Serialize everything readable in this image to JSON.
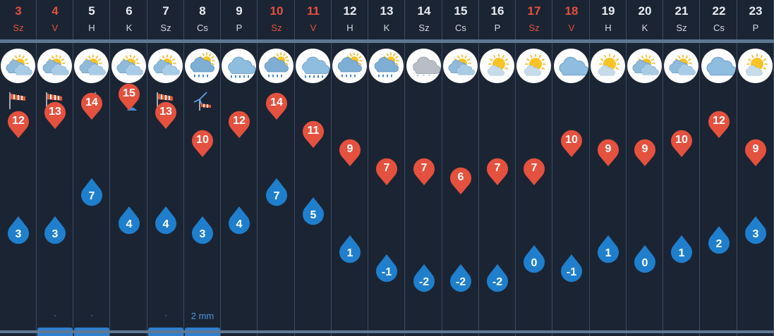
{
  "colors": {
    "background": "#1b2433",
    "separator": "#3a4b63",
    "hot_pin": "#e4513e",
    "cold_pin": "#1f7fcc",
    "weekend_text": "#e4513e",
    "precip_text": "#4c95d8",
    "precip_bar": "#2f7fcf"
  },
  "days": [
    {
      "day": "3",
      "wd": "Sz",
      "weekend": true,
      "icon": "partly-cloudy-icon",
      "wind": "windsock-icon",
      "high": "12",
      "low": "3",
      "precip": "",
      "bar": false
    },
    {
      "day": "4",
      "wd": "V",
      "weekend": true,
      "icon": "partly-cloudy-icon",
      "wind": "windsock-icon",
      "high": "13",
      "low": "3",
      "precip": ".",
      "bar": true
    },
    {
      "day": "5",
      "wd": "H",
      "weekend": false,
      "icon": "partly-cloudy-icon",
      "wind": "wind-turbine-icon",
      "high": "14",
      "low": "7",
      "precip": ".",
      "bar": true
    },
    {
      "day": "6",
      "wd": "K",
      "weekend": false,
      "icon": "partly-cloudy-icon",
      "wind": "strong-wind-warning-icon",
      "high": "15",
      "low": "4",
      "precip": "",
      "bar": false
    },
    {
      "day": "7",
      "wd": "Sz",
      "weekend": false,
      "icon": "partly-cloudy-icon",
      "wind": "windsock-icon",
      "high": "13",
      "low": "4",
      "precip": ".",
      "bar": true
    },
    {
      "day": "8",
      "wd": "Cs",
      "weekend": false,
      "icon": "sun-cloud-rain-icon",
      "wind": "wind-turbine-icon",
      "high": "10",
      "low": "3",
      "precip": "2 mm",
      "bar": true
    },
    {
      "day": "9",
      "wd": "P",
      "weekend": false,
      "icon": "rain-cloud-icon",
      "wind": "",
      "high": "12",
      "low": "4",
      "precip": "",
      "bar": false
    },
    {
      "day": "10",
      "wd": "Sz",
      "weekend": true,
      "icon": "sun-cloud-rain-icon",
      "wind": "",
      "high": "14",
      "low": "7",
      "precip": "",
      "bar": false
    },
    {
      "day": "11",
      "wd": "V",
      "weekend": true,
      "icon": "rain-cloud-icon",
      "wind": "",
      "high": "11",
      "low": "5",
      "precip": "",
      "bar": false
    },
    {
      "day": "12",
      "wd": "H",
      "weekend": false,
      "icon": "sun-cloud-rain-icon",
      "wind": "",
      "high": "9",
      "low": "1",
      "precip": "",
      "bar": false
    },
    {
      "day": "13",
      "wd": "K",
      "weekend": false,
      "icon": "sun-cloud-rain-icon",
      "wind": "",
      "high": "7",
      "low": "-1",
      "precip": "",
      "bar": false
    },
    {
      "day": "14",
      "wd": "Sz",
      "weekend": false,
      "icon": "snow-cloud-icon",
      "wind": "",
      "high": "7",
      "low": "-2",
      "precip": "",
      "bar": false
    },
    {
      "day": "15",
      "wd": "Cs",
      "weekend": false,
      "icon": "partly-cloudy-icon",
      "wind": "",
      "high": "6",
      "low": "-2",
      "precip": "",
      "bar": false
    },
    {
      "day": "16",
      "wd": "P",
      "weekend": false,
      "icon": "sun-small-cloud-icon",
      "wind": "",
      "high": "7",
      "low": "-2",
      "precip": "",
      "bar": false
    },
    {
      "day": "17",
      "wd": "Sz",
      "weekend": true,
      "icon": "sun-small-cloud-icon",
      "wind": "",
      "high": "7",
      "low": "0",
      "precip": "",
      "bar": false
    },
    {
      "day": "18",
      "wd": "V",
      "weekend": true,
      "icon": "cloud-icon",
      "wind": "",
      "high": "10",
      "low": "-1",
      "precip": "",
      "bar": false
    },
    {
      "day": "19",
      "wd": "H",
      "weekend": false,
      "icon": "sun-small-cloud-icon",
      "wind": "",
      "high": "9",
      "low": "1",
      "precip": "",
      "bar": false
    },
    {
      "day": "20",
      "wd": "K",
      "weekend": false,
      "icon": "partly-cloudy-icon",
      "wind": "",
      "high": "9",
      "low": "0",
      "precip": "",
      "bar": false
    },
    {
      "day": "21",
      "wd": "Sz",
      "weekend": false,
      "icon": "partly-cloudy-icon",
      "wind": "",
      "high": "10",
      "low": "1",
      "precip": "",
      "bar": false
    },
    {
      "day": "22",
      "wd": "Cs",
      "weekend": false,
      "icon": "cloud-icon",
      "wind": "",
      "high": "12",
      "low": "2",
      "precip": "",
      "bar": false
    },
    {
      "day": "23",
      "wd": "P",
      "weekend": false,
      "icon": "sun-small-cloud-icon",
      "wind": "",
      "high": "9",
      "low": "3",
      "precip": "",
      "bar": false
    }
  ]
}
